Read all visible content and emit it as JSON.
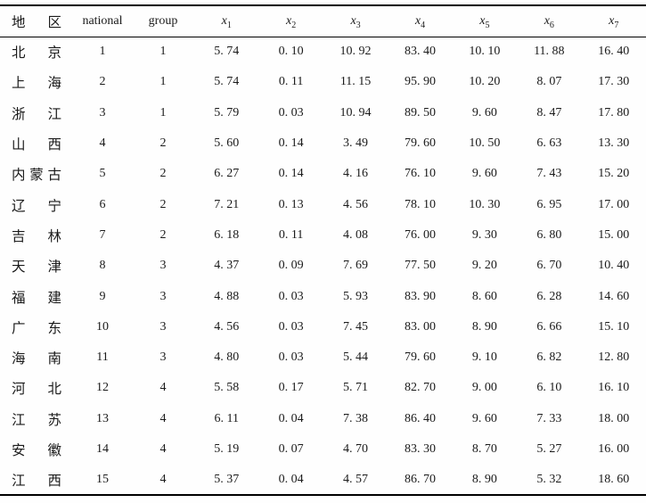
{
  "table": {
    "header": {
      "region": "地 区",
      "national": "national",
      "group": "group",
      "x_columns": [
        {
          "base": "x",
          "sub": "1"
        },
        {
          "base": "x",
          "sub": "2"
        },
        {
          "base": "x",
          "sub": "3"
        },
        {
          "base": "x",
          "sub": "4"
        },
        {
          "base": "x",
          "sub": "5"
        },
        {
          "base": "x",
          "sub": "6"
        },
        {
          "base": "x",
          "sub": "7"
        }
      ]
    },
    "rows": [
      {
        "region": "北 京",
        "national": "1",
        "group": "1",
        "values": [
          "5. 74",
          "0. 10",
          "10. 92",
          "83. 40",
          "10. 10",
          "11. 88",
          "16. 40"
        ]
      },
      {
        "region": "上 海",
        "national": "2",
        "group": "1",
        "values": [
          "5. 74",
          "0. 11",
          "11. 15",
          "95. 90",
          "10. 20",
          "8. 07",
          "17. 30"
        ]
      },
      {
        "region": "浙 江",
        "national": "3",
        "group": "1",
        "values": [
          "5. 79",
          "0. 03",
          "10. 94",
          "89. 50",
          "9. 60",
          "8. 47",
          "17. 80"
        ]
      },
      {
        "region": "山 西",
        "national": "4",
        "group": "2",
        "values": [
          "5. 60",
          "0. 14",
          "3. 49",
          "79. 60",
          "10. 50",
          "6. 63",
          "13. 30"
        ]
      },
      {
        "region": "内蒙古",
        "national": "5",
        "group": "2",
        "values": [
          "6. 27",
          "0. 14",
          "4. 16",
          "76. 10",
          "9. 60",
          "7. 43",
          "15. 20"
        ]
      },
      {
        "region": "辽 宁",
        "national": "6",
        "group": "2",
        "values": [
          "7. 21",
          "0. 13",
          "4. 56",
          "78. 10",
          "10. 30",
          "6. 95",
          "17. 00"
        ]
      },
      {
        "region": "吉 林",
        "national": "7",
        "group": "2",
        "values": [
          "6. 18",
          "0. 11",
          "4. 08",
          "76. 00",
          "9. 30",
          "6. 80",
          "15. 00"
        ]
      },
      {
        "region": "天 津",
        "national": "8",
        "group": "3",
        "values": [
          "4. 37",
          "0. 09",
          "7. 69",
          "77. 50",
          "9. 20",
          "6. 70",
          "10. 40"
        ]
      },
      {
        "region": "福 建",
        "national": "9",
        "group": "3",
        "values": [
          "4. 88",
          "0. 03",
          "5. 93",
          "83. 90",
          "8. 60",
          "6. 28",
          "14. 60"
        ]
      },
      {
        "region": "广 东",
        "national": "10",
        "group": "3",
        "values": [
          "4. 56",
          "0. 03",
          "7. 45",
          "83. 00",
          "8. 90",
          "6. 66",
          "15. 10"
        ]
      },
      {
        "region": "海 南",
        "national": "11",
        "group": "3",
        "values": [
          "4. 80",
          "0. 03",
          "5. 44",
          "79. 60",
          "9. 10",
          "6. 82",
          "12. 80"
        ]
      },
      {
        "region": "河 北",
        "national": "12",
        "group": "4",
        "values": [
          "5. 58",
          "0. 17",
          "5. 71",
          "82. 70",
          "9. 00",
          "6. 10",
          "16. 10"
        ]
      },
      {
        "region": "江 苏",
        "national": "13",
        "group": "4",
        "values": [
          "6. 11",
          "0. 04",
          "7. 38",
          "86. 40",
          "9. 60",
          "7. 33",
          "18. 00"
        ]
      },
      {
        "region": "安 徽",
        "national": "14",
        "group": "4",
        "values": [
          "5. 19",
          "0. 07",
          "4. 70",
          "83. 30",
          "8. 70",
          "5. 27",
          "16. 00"
        ]
      },
      {
        "region": "江 西",
        "national": "15",
        "group": "4",
        "values": [
          "5. 37",
          "0. 04",
          "4. 57",
          "86. 70",
          "8. 90",
          "5. 32",
          "18. 60"
        ]
      }
    ]
  },
  "colors": {
    "text": "#1a1a1a",
    "rule": "#000000",
    "background": "#fefefe"
  }
}
